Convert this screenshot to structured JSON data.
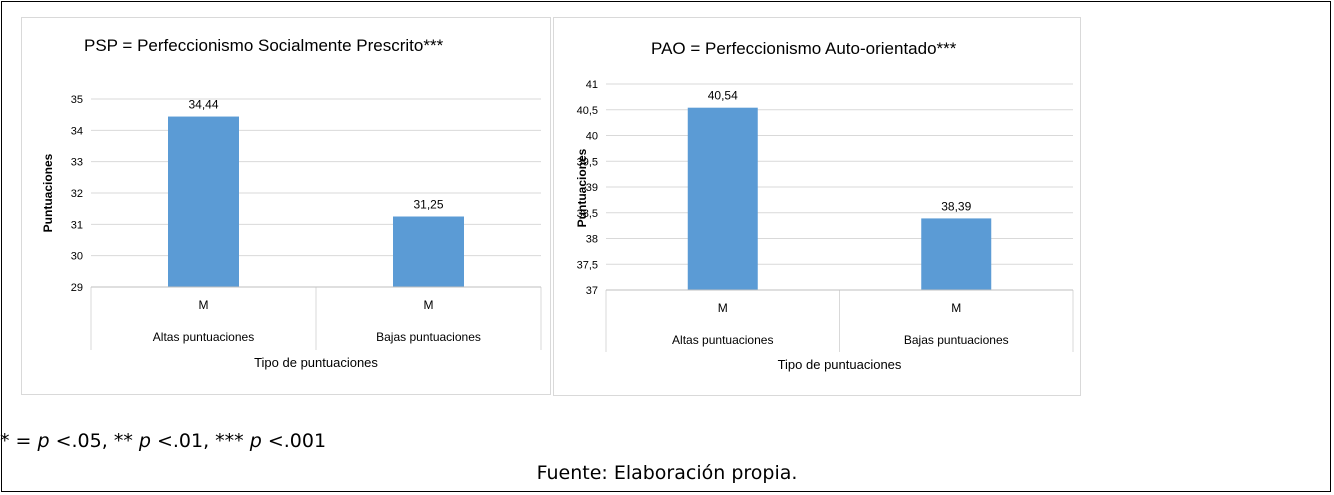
{
  "chart_data": [
    {
      "type": "bar",
      "title": "PSP = Perfeccionismo  Socialmente Prescrito***",
      "xlabel": "Tipo de puntuaciones",
      "ylabel": "Puntuaciones",
      "ylim": [
        29,
        35
      ],
      "yticks": [
        "29",
        "30",
        "31",
        "32",
        "33",
        "34",
        "35"
      ],
      "grid": true,
      "bar_color": "#5b9bd5",
      "categories": [
        {
          "inner": "M",
          "outer": "Altas puntuaciones"
        },
        {
          "inner": "M",
          "outer": "Bajas puntuaciones"
        }
      ],
      "values": [
        34.44,
        31.25
      ],
      "value_labels": [
        "34,44",
        "31,25"
      ]
    },
    {
      "type": "bar",
      "title": "PAO = Perfeccionismo  Auto-orientado***",
      "xlabel": "Tipo de puntuaciones",
      "ylabel": "Puntuaciones",
      "ylim": [
        37,
        41
      ],
      "yticks": [
        "37",
        "37,5",
        "38",
        "38,5",
        "39",
        "39,5",
        "40",
        "40,5",
        "41"
      ],
      "grid": true,
      "bar_color": "#5b9bd5",
      "categories": [
        {
          "inner": "M",
          "outer": "Altas puntuaciones"
        },
        {
          "inner": "M",
          "outer": "Bajas puntuaciones"
        }
      ],
      "values": [
        40.54,
        38.39
      ],
      "value_labels": [
        "40,54",
        "38,39"
      ]
    }
  ],
  "footnote": {
    "prefix": "* = ",
    "p1": "p",
    "t1": " <.05, ** ",
    "p2": "p",
    "t2": " <.01, *** ",
    "p3": "p",
    "t3": " <.001"
  },
  "source": "Fuente: Elaboración propia."
}
